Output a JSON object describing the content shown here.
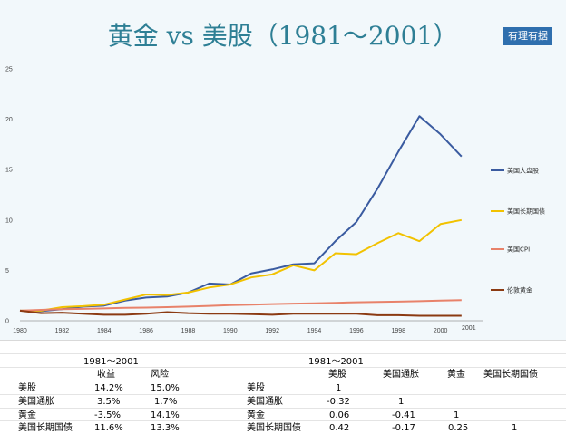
{
  "header": {
    "title": "黄金 vs 美股（1981～2001）",
    "badge": "有理有据"
  },
  "chart_data": {
    "type": "line",
    "x": [
      1980,
      1981,
      1982,
      1983,
      1984,
      1985,
      1986,
      1987,
      1988,
      1989,
      1990,
      1991,
      1992,
      1993,
      1994,
      1995,
      1996,
      1997,
      1998,
      1999,
      2000,
      2001
    ],
    "xticks": [
      "1980",
      "1982",
      "1984",
      "1986",
      "1988",
      "1990",
      "1992",
      "1994",
      "1996",
      "1998",
      "2000"
    ],
    "extra_xlabel": "2001",
    "yticks": [
      "0",
      "5",
      "10",
      "15",
      "20",
      "25"
    ],
    "ylim": [
      0,
      25
    ],
    "xlim": [
      1980,
      2002
    ],
    "grid": false,
    "legend_position": "right",
    "series": [
      {
        "name": "美国大盘股",
        "color": "#3a5ba0",
        "values": [
          1.0,
          0.95,
          1.15,
          1.4,
          1.5,
          2.0,
          2.3,
          2.4,
          2.8,
          3.7,
          3.6,
          4.7,
          5.1,
          5.6,
          5.7,
          7.9,
          9.8,
          13.1,
          16.8,
          20.3,
          18.5,
          16.3
        ]
      },
      {
        "name": "美国长期国债",
        "color": "#f2c200",
        "values": [
          1.0,
          1.0,
          1.35,
          1.45,
          1.6,
          2.1,
          2.6,
          2.55,
          2.8,
          3.3,
          3.6,
          4.3,
          4.6,
          5.5,
          5.0,
          6.7,
          6.6,
          7.7,
          8.7,
          7.9,
          9.6,
          10.0
        ]
      },
      {
        "name": "美国CPI",
        "color": "#e8826a",
        "values": [
          1.0,
          1.08,
          1.15,
          1.18,
          1.23,
          1.28,
          1.3,
          1.35,
          1.4,
          1.47,
          1.55,
          1.6,
          1.65,
          1.7,
          1.73,
          1.78,
          1.83,
          1.87,
          1.9,
          1.94,
          2.0,
          2.05
        ]
      },
      {
        "name": "伦敦黄金",
        "color": "#8b3a12",
        "values": [
          1.0,
          0.75,
          0.8,
          0.7,
          0.6,
          0.6,
          0.7,
          0.85,
          0.75,
          0.7,
          0.7,
          0.65,
          0.6,
          0.7,
          0.7,
          0.7,
          0.7,
          0.55,
          0.55,
          0.5,
          0.5,
          0.5
        ]
      }
    ]
  },
  "table1": {
    "period": "1981～2001",
    "headers": [
      "收益",
      "风险"
    ],
    "rows": [
      {
        "label": "美股",
        "values": [
          "14.2%",
          "15.0%"
        ]
      },
      {
        "label": "美国通胀",
        "values": [
          "3.5%",
          "1.7%"
        ]
      },
      {
        "label": "黄金",
        "values": [
          "-3.5%",
          "14.1%"
        ]
      },
      {
        "label": "美国长期国债",
        "values": [
          "11.6%",
          "13.3%"
        ]
      }
    ]
  },
  "table2": {
    "period": "1981～2001",
    "headers": [
      "美股",
      "美国通胀",
      "黄金",
      "美国长期国债"
    ],
    "rows": [
      {
        "label": "美股",
        "values": [
          "1",
          "",
          "",
          ""
        ]
      },
      {
        "label": "美国通胀",
        "values": [
          "-0.32",
          "1",
          "",
          ""
        ]
      },
      {
        "label": "黄金",
        "values": [
          "0.06",
          "-0.41",
          "1",
          ""
        ]
      },
      {
        "label": "美国长期国债",
        "values": [
          "0.42",
          "-0.17",
          "0.25",
          "1"
        ]
      }
    ]
  }
}
